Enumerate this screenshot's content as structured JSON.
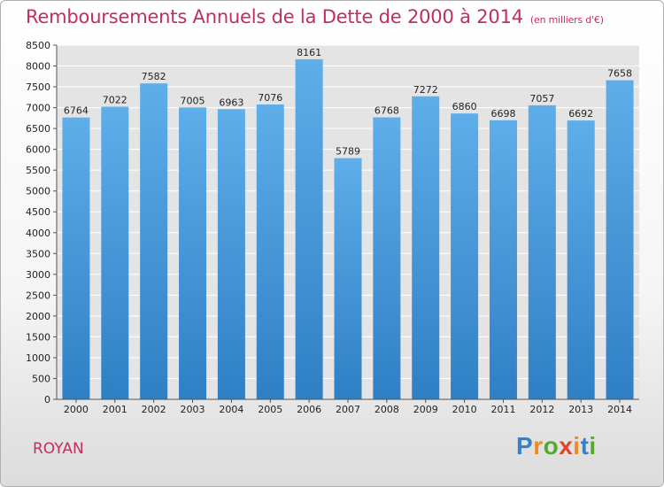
{
  "title": "Remboursements Annuels de la Dette de 2000 à 2014",
  "unit": "(en milliers d'€)",
  "city": "ROYAN",
  "brand": {
    "letters": [
      "P",
      "r",
      "o",
      "x",
      "i",
      "t",
      "i"
    ],
    "colors": [
      "#3d7fc4",
      "#f08a1c",
      "#5aa72e",
      "#e4432b",
      "#f08a1c",
      "#3d7fc4",
      "#5aa72e"
    ]
  },
  "colors": {
    "bar_light": "#5eaeea",
    "bar_dark": "#2f7fc5",
    "title": "#c0305a",
    "grid": "#ffffff"
  },
  "chart_data": {
    "type": "bar",
    "categories": [
      "2000",
      "2001",
      "2002",
      "2003",
      "2004",
      "2005",
      "2006",
      "2007",
      "2008",
      "2009",
      "2010",
      "2011",
      "2012",
      "2013",
      "2014"
    ],
    "values": [
      6764,
      7022,
      7582,
      7005,
      6963,
      7076,
      8161,
      5789,
      6768,
      7272,
      6860,
      6698,
      7057,
      6692,
      7658
    ],
    "ylim": [
      0,
      8500
    ],
    "yticks": [
      0,
      500,
      1000,
      1500,
      2000,
      2500,
      3000,
      3500,
      4000,
      4500,
      5000,
      5500,
      6000,
      6500,
      7000,
      7500,
      8000,
      8500
    ],
    "grid": true,
    "xlabel": "",
    "ylabel": ""
  }
}
